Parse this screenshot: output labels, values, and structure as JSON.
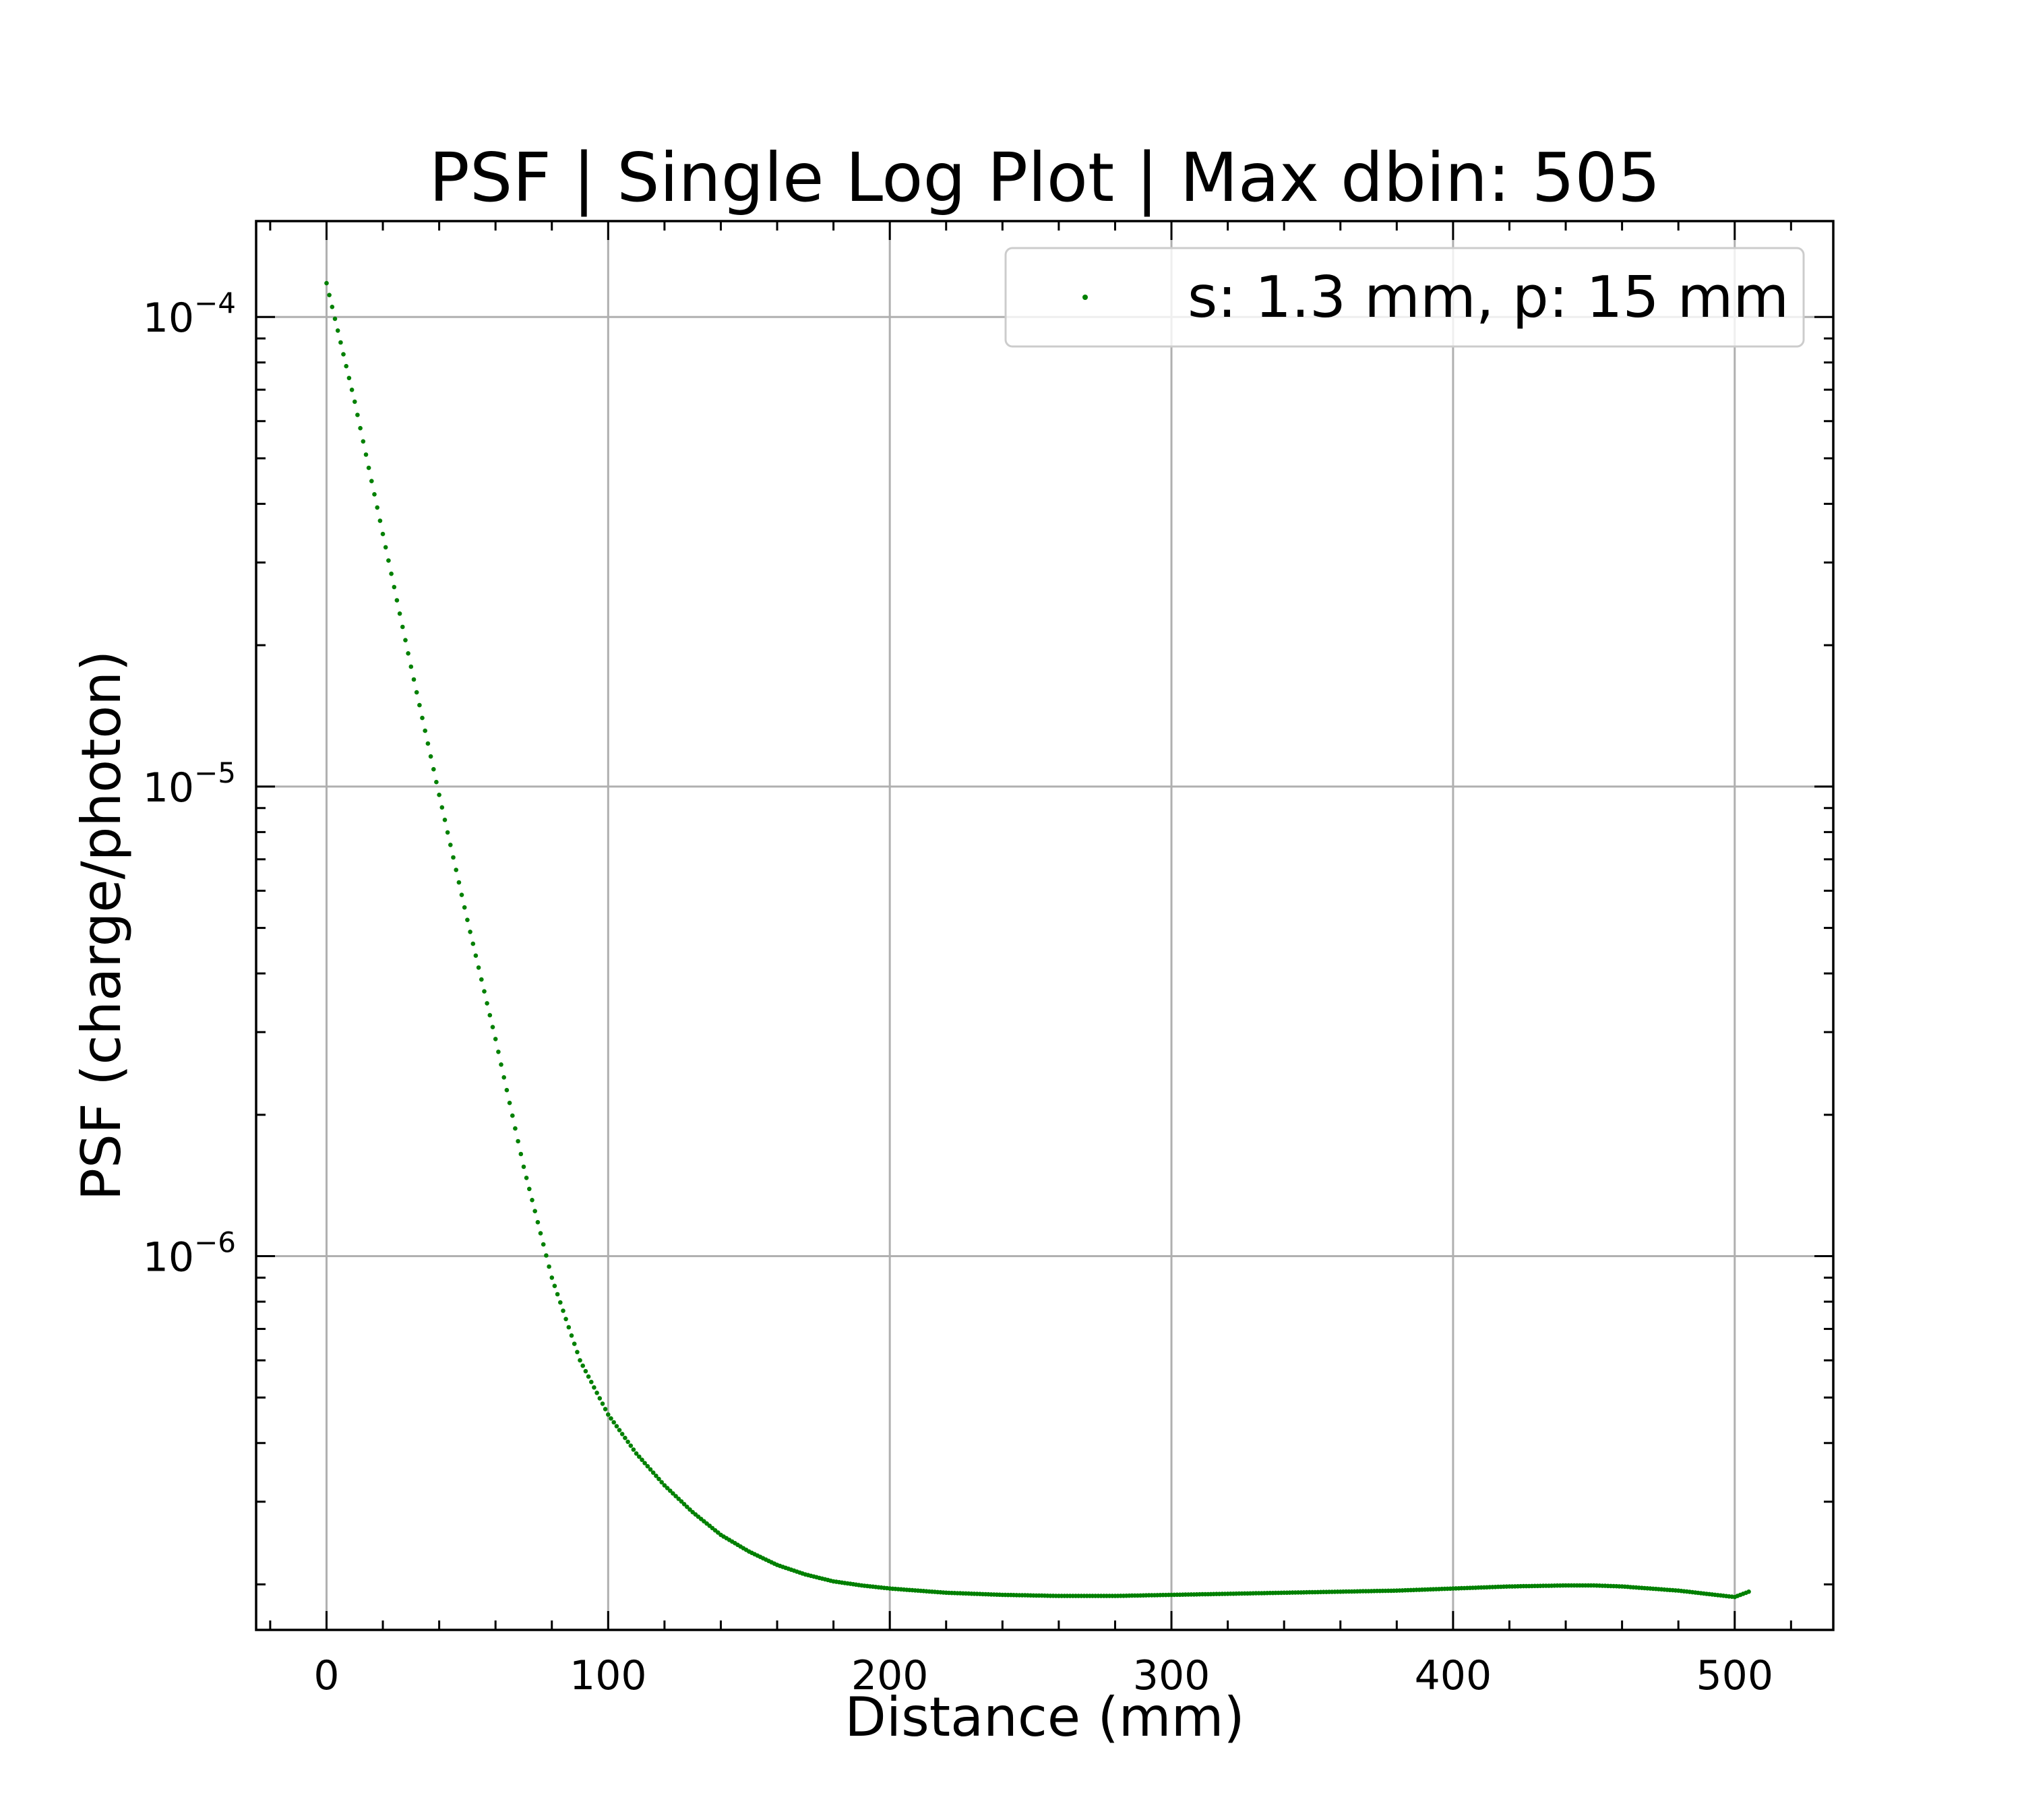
{
  "chart_data": {
    "type": "scatter",
    "title": "PSF | Single Log Plot | Max dbin: 505",
    "xlabel": "Distance (mm)",
    "ylabel": "PSF (charge/photon)",
    "xlim": [
      -25,
      535
    ],
    "ylim": [
      1.6e-07,
      0.00016
    ],
    "yscale": "log",
    "grid": true,
    "legend_position": "top-right",
    "x_ticks": [
      0,
      100,
      200,
      300,
      400,
      500
    ],
    "x_tick_labels": [
      "0",
      "100",
      "200",
      "300",
      "400",
      "500"
    ],
    "y_ticks": [
      1e-06,
      1e-05,
      0.0001
    ],
    "y_tick_labels": [
      {
        "base": "10",
        "exp": "−6"
      },
      {
        "base": "10",
        "exp": "−5"
      },
      {
        "base": "10",
        "exp": "−4"
      }
    ],
    "series": [
      {
        "name": "s: 1.3 mm, p: 15 mm",
        "color": "#008000",
        "marker": "point",
        "x_start": 0,
        "x_end": 505,
        "x_step": 1,
        "x": [
          0,
          10,
          20,
          30,
          40,
          50,
          60,
          70,
          80,
          90,
          100,
          110,
          120,
          130,
          140,
          150,
          160,
          170,
          180,
          190,
          200,
          220,
          240,
          260,
          280,
          300,
          320,
          340,
          360,
          380,
          400,
          420,
          440,
          450,
          460,
          480,
          500,
          505
        ],
        "y": [
          0.000118,
          6.6e-05,
          3.45e-05,
          1.8e-05,
          9.6e-06,
          5.2e-06,
          2.9e-06,
          1.55e-06,
          9e-07,
          6e-07,
          4.6e-07,
          3.8e-07,
          3.25e-07,
          2.85e-07,
          2.55e-07,
          2.35e-07,
          2.2e-07,
          2.1e-07,
          2.03e-07,
          1.99e-07,
          1.96e-07,
          1.92e-07,
          1.9e-07,
          1.89e-07,
          1.89e-07,
          1.9e-07,
          1.91e-07,
          1.92e-07,
          1.93e-07,
          1.94e-07,
          1.96e-07,
          1.98e-07,
          1.99e-07,
          1.99e-07,
          1.98e-07,
          1.94e-07,
          1.88e-07,
          1.93e-07
        ]
      }
    ]
  }
}
